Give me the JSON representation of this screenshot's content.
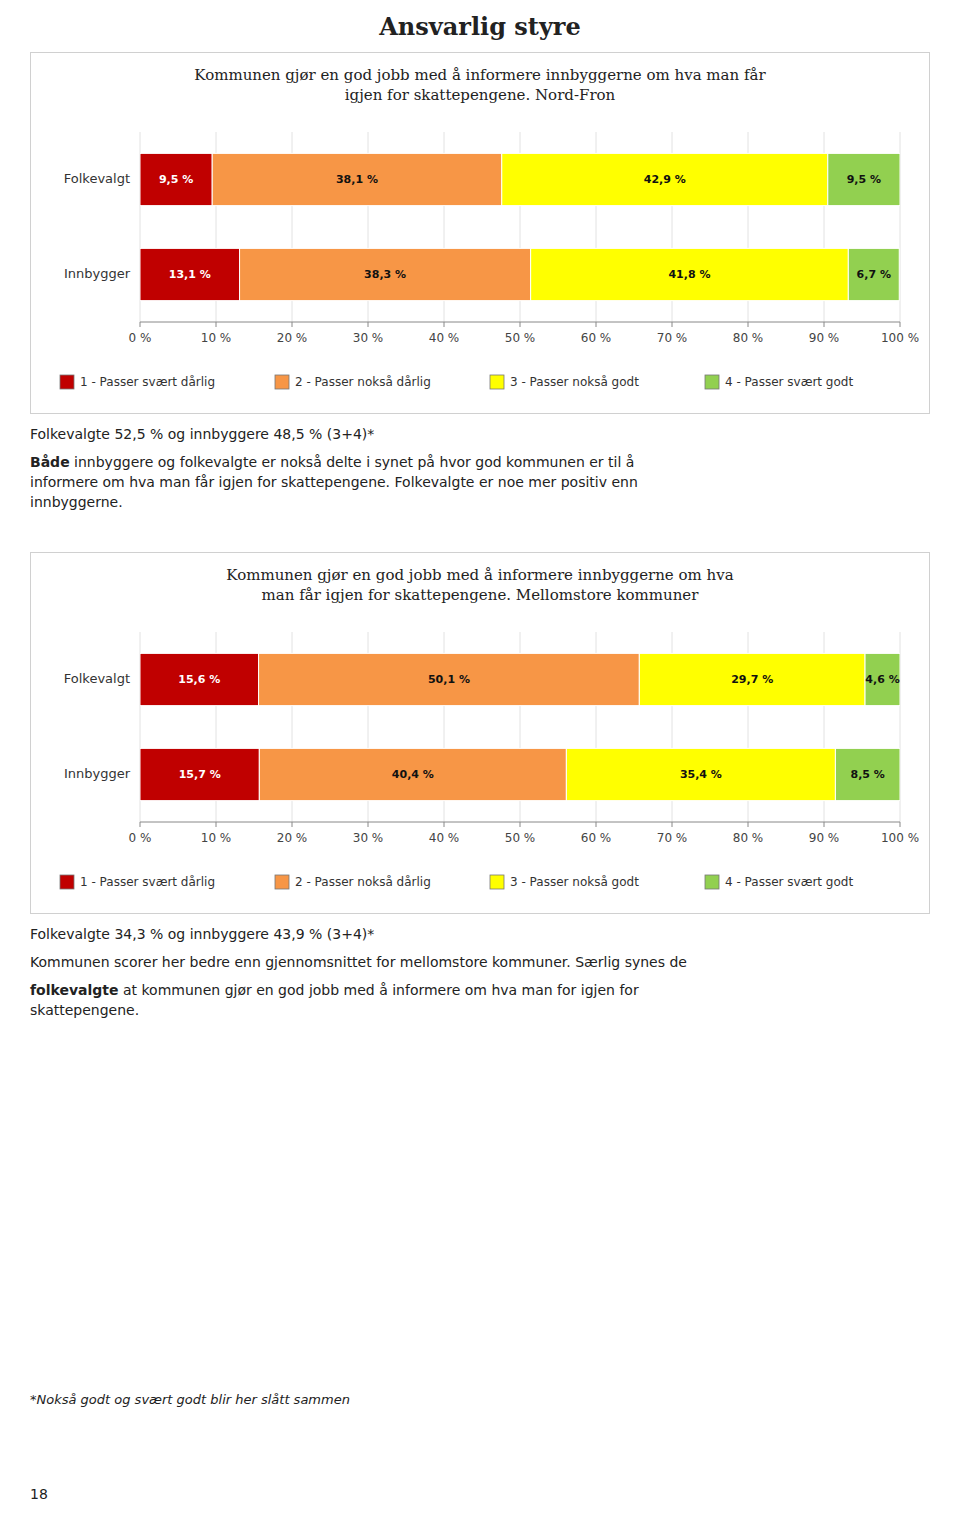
{
  "title": "Ansvarlig styre",
  "chart_data": [
    {
      "type": "bar",
      "orientation": "horizontal",
      "stacked": true,
      "title": "Kommunen gjør en god jobb med å informere innbyggerne om hva man får\nigjen for skattepengene. Nord-Fron",
      "categories": [
        "Folkevalgt",
        "Innbygger"
      ],
      "series": [
        {
          "name": "1 - Passer svært dårlig",
          "color": "#c00000",
          "values": [
            9.5,
            13.1
          ],
          "value_labels": [
            "9,5 %",
            "13,1 %"
          ]
        },
        {
          "name": "2 - Passer nokså dårlig",
          "color": "#f79646",
          "values": [
            38.1,
            38.3
          ],
          "value_labels": [
            "38,1 %",
            "38,3 %"
          ]
        },
        {
          "name": "3 - Passer nokså godt",
          "color": "#ffff00",
          "values": [
            42.9,
            41.8
          ],
          "value_labels": [
            "42,9 %",
            "41,8 %"
          ]
        },
        {
          "name": "4 - Passer svært godt",
          "color": "#92d050",
          "values": [
            9.5,
            6.7
          ],
          "value_labels": [
            "9,5 %",
            "6,7 %"
          ]
        }
      ],
      "xlim": [
        0,
        100
      ],
      "xticks": [
        {
          "value": 0,
          "label": "0 %"
        },
        {
          "value": 10,
          "label": "10 %"
        },
        {
          "value": 20,
          "label": "20 %"
        },
        {
          "value": 30,
          "label": "30 %"
        },
        {
          "value": 40,
          "label": "40 %"
        },
        {
          "value": 50,
          "label": "50 %"
        },
        {
          "value": 60,
          "label": "60 %"
        },
        {
          "value": 70,
          "label": "70 %"
        },
        {
          "value": 80,
          "label": "80 %"
        },
        {
          "value": 90,
          "label": "90 %"
        },
        {
          "value": 100,
          "label": "100 %"
        }
      ],
      "grid": true,
      "data_labels": true,
      "legend": "bottom"
    },
    {
      "type": "bar",
      "orientation": "horizontal",
      "stacked": true,
      "title": "Kommunen gjør en god jobb med å informere innbyggerne om hva\nman får igjen for skattepengene. Mellomstore kommuner",
      "categories": [
        "Folkevalgt",
        "Innbygger"
      ],
      "series": [
        {
          "name": "1 - Passer svært dårlig",
          "color": "#c00000",
          "values": [
            15.6,
            15.7
          ],
          "value_labels": [
            "15,6 %",
            "15,7 %"
          ]
        },
        {
          "name": "2 - Passer nokså dårlig",
          "color": "#f79646",
          "values": [
            50.1,
            40.4
          ],
          "value_labels": [
            "50,1 %",
            "40,4 %"
          ]
        },
        {
          "name": "3 - Passer nokså godt",
          "color": "#ffff00",
          "values": [
            29.7,
            35.4
          ],
          "value_labels": [
            "29,7 %",
            "35,4 %"
          ]
        },
        {
          "name": "4 - Passer svært godt",
          "color": "#92d050",
          "values": [
            4.6,
            8.5
          ],
          "value_labels": [
            "4,6 %",
            "8,5 %"
          ]
        }
      ],
      "xlim": [
        0,
        100
      ],
      "xticks": [
        {
          "value": 0,
          "label": "0 %"
        },
        {
          "value": 10,
          "label": "10 %"
        },
        {
          "value": 20,
          "label": "20 %"
        },
        {
          "value": 30,
          "label": "30 %"
        },
        {
          "value": 40,
          "label": "40 %"
        },
        {
          "value": 50,
          "label": "50 %"
        },
        {
          "value": 60,
          "label": "60 %"
        },
        {
          "value": 70,
          "label": "70 %"
        },
        {
          "value": 80,
          "label": "80 %"
        },
        {
          "value": 90,
          "label": "90 %"
        },
        {
          "value": 100,
          "label": "100 %"
        }
      ],
      "grid": true,
      "data_labels": true,
      "legend": "bottom"
    }
  ],
  "annotations": [
    [
      [
        {
          "text": "Folkevalgte 52,5 % og innbyggere 48,5 % (3+4)*",
          "bold": false
        }
      ],
      [
        {
          "text": "Både",
          "bold": true
        },
        {
          "text": " innbyggere og folkevalgte er nokså delte i synet på hvor god kommunen er til å\ninformere om hva man får igjen for skattepengene. Folkevalgte er noe mer positiv enn\ninnbyggerne.",
          "bold": false
        }
      ]
    ],
    [
      [
        {
          "text": "Folkevalgte 34,3 % og innbyggere 43,9 % (3+4)*",
          "bold": false
        }
      ],
      [
        {
          "text": "Kommunen scorer her bedre enn gjennomsnittet for mellomstore kommuner. Særlig synes de",
          "bold": false
        }
      ],
      [
        {
          "text": "folkevalgte",
          "bold": true
        },
        {
          "text": " at kommunen gjør en god jobb med å informere om hva man for igjen for\nskattepengene.",
          "bold": false
        }
      ]
    ]
  ],
  "footnote": "*Nokså godt og svært godt blir her slått sammen",
  "page_number": "18"
}
